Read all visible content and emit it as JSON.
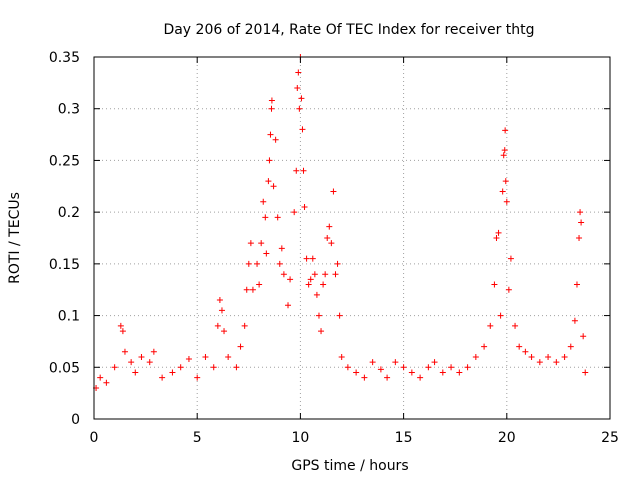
{
  "chart_data": {
    "type": "scatter",
    "title": "Day 206 of 2014, Rate Of TEC Index for receiver thtg",
    "xlabel": "GPS time / hours",
    "ylabel": "ROTI / TECUs",
    "xlim": [
      0,
      25
    ],
    "ylim": [
      0,
      0.35
    ],
    "xticks": [
      0,
      5,
      10,
      15,
      20,
      25
    ],
    "yticks": [
      0,
      0.05,
      0.1,
      0.15,
      0.2,
      0.25,
      0.3,
      0.35
    ],
    "xtick_labels": [
      "0",
      "5",
      "10",
      "15",
      "20",
      "25"
    ],
    "ytick_labels": [
      "0",
      "0.05",
      "0.1",
      "0.15",
      "0.2",
      "0.25",
      "0.3",
      "0.35"
    ],
    "grid": true,
    "marker": "+",
    "color": "#ff0000",
    "series": [
      {
        "name": "ROTI",
        "points": [
          [
            0.1,
            0.03
          ],
          [
            0.3,
            0.04
          ],
          [
            0.6,
            0.035
          ],
          [
            1.0,
            0.05
          ],
          [
            1.3,
            0.09
          ],
          [
            1.4,
            0.085
          ],
          [
            1.5,
            0.065
          ],
          [
            1.8,
            0.055
          ],
          [
            2.0,
            0.045
          ],
          [
            2.3,
            0.06
          ],
          [
            2.7,
            0.055
          ],
          [
            2.9,
            0.065
          ],
          [
            3.3,
            0.04
          ],
          [
            3.8,
            0.045
          ],
          [
            4.2,
            0.05
          ],
          [
            4.6,
            0.058
          ],
          [
            5.0,
            0.04
          ],
          [
            5.4,
            0.06
          ],
          [
            5.8,
            0.05
          ],
          [
            6.0,
            0.09
          ],
          [
            6.1,
            0.115
          ],
          [
            6.2,
            0.105
          ],
          [
            6.3,
            0.085
          ],
          [
            6.5,
            0.06
          ],
          [
            6.9,
            0.05
          ],
          [
            7.1,
            0.07
          ],
          [
            7.3,
            0.09
          ],
          [
            7.4,
            0.125
          ],
          [
            7.5,
            0.15
          ],
          [
            7.6,
            0.17
          ],
          [
            7.7,
            0.125
          ],
          [
            7.9,
            0.15
          ],
          [
            8.0,
            0.13
          ],
          [
            8.1,
            0.17
          ],
          [
            8.2,
            0.21
          ],
          [
            8.3,
            0.195
          ],
          [
            8.35,
            0.16
          ],
          [
            8.45,
            0.23
          ],
          [
            8.5,
            0.25
          ],
          [
            8.55,
            0.275
          ],
          [
            8.6,
            0.3
          ],
          [
            8.62,
            0.308
          ],
          [
            8.7,
            0.225
          ],
          [
            8.8,
            0.27
          ],
          [
            8.9,
            0.195
          ],
          [
            9.0,
            0.15
          ],
          [
            9.1,
            0.165
          ],
          [
            9.2,
            0.14
          ],
          [
            9.4,
            0.11
          ],
          [
            9.5,
            0.135
          ],
          [
            9.7,
            0.2
          ],
          [
            9.8,
            0.24
          ],
          [
            9.85,
            0.32
          ],
          [
            9.9,
            0.335
          ],
          [
            9.95,
            0.3
          ],
          [
            10.0,
            0.35
          ],
          [
            10.05,
            0.31
          ],
          [
            10.1,
            0.28
          ],
          [
            10.15,
            0.24
          ],
          [
            10.2,
            0.205
          ],
          [
            10.3,
            0.155
          ],
          [
            10.4,
            0.13
          ],
          [
            10.5,
            0.135
          ],
          [
            10.6,
            0.155
          ],
          [
            10.7,
            0.14
          ],
          [
            10.8,
            0.12
          ],
          [
            10.9,
            0.1
          ],
          [
            11.0,
            0.085
          ],
          [
            11.1,
            0.13
          ],
          [
            11.2,
            0.14
          ],
          [
            11.3,
            0.175
          ],
          [
            11.4,
            0.186
          ],
          [
            11.5,
            0.17
          ],
          [
            11.6,
            0.22
          ],
          [
            11.7,
            0.14
          ],
          [
            11.8,
            0.15
          ],
          [
            11.9,
            0.1
          ],
          [
            12.0,
            0.06
          ],
          [
            12.3,
            0.05
          ],
          [
            12.7,
            0.045
          ],
          [
            13.1,
            0.04
          ],
          [
            13.5,
            0.055
          ],
          [
            13.9,
            0.048
          ],
          [
            14.2,
            0.04
          ],
          [
            14.6,
            0.055
          ],
          [
            15.0,
            0.05
          ],
          [
            15.4,
            0.045
          ],
          [
            15.8,
            0.04
          ],
          [
            16.2,
            0.05
          ],
          [
            16.5,
            0.055
          ],
          [
            16.9,
            0.045
          ],
          [
            17.3,
            0.05
          ],
          [
            17.7,
            0.045
          ],
          [
            18.1,
            0.05
          ],
          [
            18.5,
            0.06
          ],
          [
            18.9,
            0.07
          ],
          [
            19.2,
            0.09
          ],
          [
            19.4,
            0.13
          ],
          [
            19.5,
            0.175
          ],
          [
            19.6,
            0.18
          ],
          [
            19.7,
            0.1
          ],
          [
            19.8,
            0.22
          ],
          [
            19.85,
            0.255
          ],
          [
            19.9,
            0.26
          ],
          [
            19.92,
            0.279
          ],
          [
            19.95,
            0.23
          ],
          [
            20.0,
            0.21
          ],
          [
            20.1,
            0.125
          ],
          [
            20.2,
            0.155
          ],
          [
            20.4,
            0.09
          ],
          [
            20.6,
            0.07
          ],
          [
            20.9,
            0.065
          ],
          [
            21.2,
            0.06
          ],
          [
            21.6,
            0.055
          ],
          [
            22.0,
            0.06
          ],
          [
            22.4,
            0.055
          ],
          [
            22.8,
            0.06
          ],
          [
            23.1,
            0.07
          ],
          [
            23.3,
            0.095
          ],
          [
            23.4,
            0.13
          ],
          [
            23.5,
            0.175
          ],
          [
            23.55,
            0.2
          ],
          [
            23.6,
            0.19
          ],
          [
            23.7,
            0.08
          ],
          [
            23.8,
            0.045
          ]
        ]
      }
    ]
  }
}
